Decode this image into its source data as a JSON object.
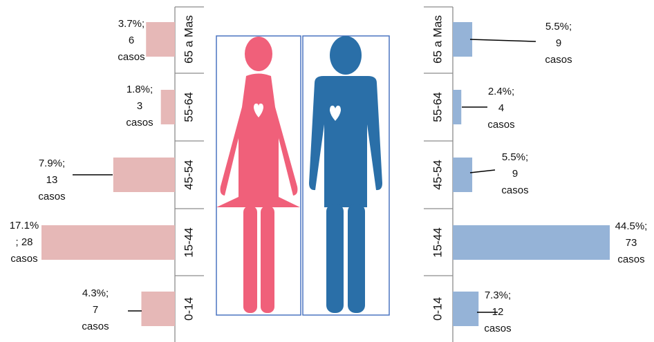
{
  "chart_data": [
    {
      "type": "bar",
      "orientation": "horizontal",
      "direction": "leftward",
      "categories": [
        "0-14",
        "15-44",
        "45-54",
        "55-64",
        "65 a Mas"
      ],
      "values": [
        4.3,
        17.1,
        7.9,
        1.8,
        3.7
      ],
      "cases": [
        7,
        28,
        13,
        3,
        6
      ],
      "labels": [
        [
          "4.3%;",
          "7",
          "casos"
        ],
        [
          "17.1%",
          "; 28",
          "casos"
        ],
        [
          "7.9%;",
          "13",
          "casos"
        ],
        [
          "1.8%;",
          "3",
          "casos"
        ],
        [
          "3.7%;",
          "6",
          "casos"
        ]
      ],
      "color": "#e6b8b7",
      "xlim": [
        0,
        19.5
      ]
    },
    {
      "type": "bar",
      "orientation": "horizontal",
      "direction": "rightward",
      "categories": [
        "0-14",
        "15-44",
        "45-54",
        "55-64",
        "65 a Mas"
      ],
      "values": [
        7.3,
        44.5,
        5.5,
        2.4,
        5.5
      ],
      "cases": [
        12,
        73,
        9,
        4,
        9
      ],
      "labels": [
        [
          "7.3%;",
          "12",
          "casos"
        ],
        [
          "44.5%;",
          "73",
          "casos"
        ],
        [
          "5.5%;",
          "9",
          "casos"
        ],
        [
          "2.4%;",
          "4",
          "casos"
        ],
        [
          "5.5%;",
          "9",
          "casos"
        ]
      ],
      "color": "#95b3d7",
      "xlim": [
        0,
        48.5
      ]
    }
  ],
  "figures": {
    "female_color": "#f0607a",
    "male_color": "#2a6fa8",
    "frame_color": "#4a74c0",
    "heart_color": "#ffffff"
  }
}
